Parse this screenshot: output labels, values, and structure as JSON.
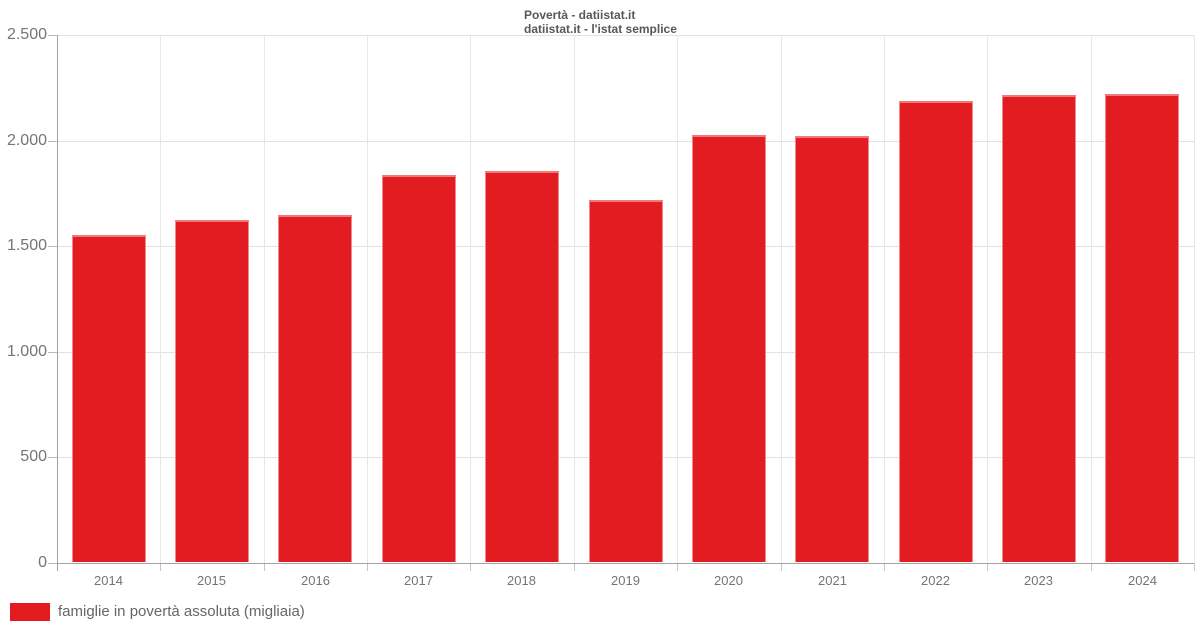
{
  "title": {
    "line1": "Povertà - datiistat.it",
    "line2": "datiistat.it - l'istat semplice"
  },
  "legend": {
    "label": "famiglie in povertà assoluta (migliaia)"
  },
  "colors": {
    "bar_fill": "#e21c20",
    "bar_border": "#f0797d",
    "axis_line": "#a3a3a3",
    "grid_line": "#e2e2e2",
    "axis_text": "#757575",
    "title_text": "#58585a"
  },
  "chart_data": {
    "type": "bar",
    "title": "Povertà - datiistat.it",
    "subtitle": "datiistat.it - l'istat semplice",
    "categories": [
      "2014",
      "2015",
      "2016",
      "2017",
      "2018",
      "2019",
      "2020",
      "2021",
      "2022",
      "2023",
      "2024"
    ],
    "series": [
      {
        "name": "famiglie in povertà assoluta (migliaia)",
        "values": [
          1552,
          1622,
          1648,
          1837,
          1857,
          1717,
          2025,
          2022,
          2188,
          2217,
          2222
        ]
      }
    ],
    "xlabel": "",
    "ylabel": "",
    "ylim": [
      0,
      2500
    ],
    "ytick_step": 500,
    "ytick_labels": [
      "0",
      "500",
      "1.000",
      "1.500",
      "2.000",
      "2.500"
    ],
    "grid": true,
    "legend_position": "bottom-left"
  }
}
